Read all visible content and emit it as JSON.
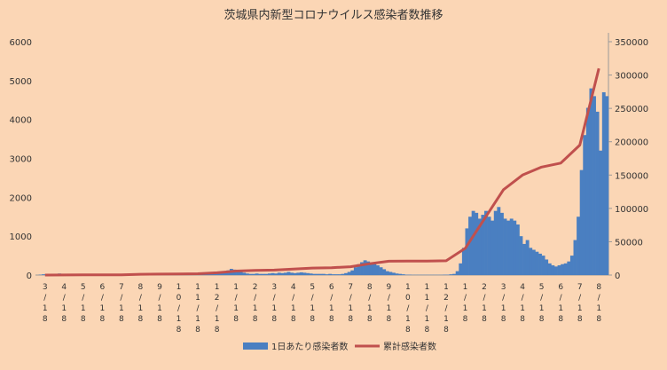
{
  "chart_data": {
    "type": "bar+line",
    "title": "茨城県内新型コロナウイルス感染者数推移",
    "y_left": {
      "ticks": [
        "0",
        "1000",
        "2000",
        "3000",
        "4000",
        "5000",
        "6000"
      ],
      "min": 0,
      "max": 6000
    },
    "y_right": {
      "ticks": [
        "0",
        "50000",
        "100000",
        "150000",
        "200000",
        "250000",
        "300000",
        "350000"
      ],
      "min": 0,
      "max": 350000
    },
    "x_tick_labels": [
      [
        "3",
        "/",
        "1",
        "8"
      ],
      [
        "4",
        "/",
        "1",
        "8"
      ],
      [
        "5",
        "/",
        "1",
        "8"
      ],
      [
        "6",
        "/",
        "1",
        "8"
      ],
      [
        "7",
        "/",
        "1",
        "8"
      ],
      [
        "8",
        "/",
        "1",
        "8"
      ],
      [
        "9",
        "/",
        "1",
        "8"
      ],
      [
        "1",
        "0",
        "/",
        "1",
        "8"
      ],
      [
        "1",
        "1",
        "/",
        "1",
        "8"
      ],
      [
        "1",
        "2",
        "/",
        "1",
        "8"
      ],
      [
        "1",
        "/",
        "1",
        "8"
      ],
      [
        "2",
        "/",
        "1",
        "8"
      ],
      [
        "3",
        "/",
        "1",
        "8"
      ],
      [
        "4",
        "/",
        "1",
        "8"
      ],
      [
        "5",
        "/",
        "1",
        "8"
      ],
      [
        "6",
        "/",
        "1",
        "8"
      ],
      [
        "7",
        "/",
        "1",
        "8"
      ],
      [
        "8",
        "/",
        "1",
        "8"
      ],
      [
        "9",
        "/",
        "1",
        "8"
      ],
      [
        "1",
        "0",
        "/",
        "1",
        "8"
      ],
      [
        "1",
        "1",
        "/",
        "1",
        "8"
      ],
      [
        "1",
        "2",
        "/",
        "1",
        "8"
      ],
      [
        "1",
        "/",
        "1",
        "8"
      ],
      [
        "2",
        "/",
        "1",
        "8"
      ],
      [
        "3",
        "/",
        "1",
        "8"
      ],
      [
        "4",
        "/",
        "1",
        "8"
      ],
      [
        "5",
        "/",
        "1",
        "8"
      ],
      [
        "6",
        "/",
        "1",
        "8"
      ],
      [
        "7",
        "/",
        "1",
        "8"
      ],
      [
        "8",
        "/",
        "1",
        "8"
      ]
    ],
    "bar_series": {
      "name": "1日あたり感染者数",
      "color": "#4a7fc1",
      "months": [
        "2020-03",
        "2020-04",
        "2020-05",
        "2020-06",
        "2020-07",
        "2020-08",
        "2020-09",
        "2020-10",
        "2020-11",
        "2020-12",
        "2021-01",
        "2021-02",
        "2021-03",
        "2021-04",
        "2021-05",
        "2021-06",
        "2021-07",
        "2021-08",
        "2021-09",
        "2021-10",
        "2021-11",
        "2021-12",
        "2022-01",
        "2022-02",
        "2022-03",
        "2022-04",
        "2022-05",
        "2022-06",
        "2022-07",
        "2022-08"
      ],
      "daily_approx_by_month": [
        [
          0,
          10,
          20,
          30,
          20,
          10
        ],
        [
          10,
          40,
          20,
          10,
          5,
          0
        ],
        [
          0,
          0,
          0,
          0,
          0,
          0
        ],
        [
          0,
          0,
          0,
          0,
          0,
          0
        ],
        [
          0,
          5,
          10,
          20,
          30,
          20
        ],
        [
          20,
          40,
          30,
          20,
          10,
          10
        ],
        [
          10,
          5,
          5,
          5,
          5,
          5
        ],
        [
          5,
          5,
          5,
          10,
          10,
          10
        ],
        [
          10,
          20,
          30,
          40,
          50,
          60
        ],
        [
          60,
          80,
          60,
          90,
          70,
          60
        ],
        [
          120,
          160,
          140,
          100,
          80,
          60
        ],
        [
          40,
          30,
          30,
          40,
          30,
          30
        ],
        [
          30,
          40,
          50,
          40,
          60,
          50
        ],
        [
          60,
          80,
          60,
          50,
          60,
          70
        ],
        [
          60,
          50,
          40,
          30,
          30,
          30
        ],
        [
          30,
          20,
          30,
          20,
          20,
          20
        ],
        [
          30,
          50,
          80,
          120,
          200,
          280
        ],
        [
          330,
          380,
          350,
          320,
          290,
          250
        ],
        [
          200,
          150,
          100,
          80,
          60,
          40
        ],
        [
          30,
          20,
          10,
          10,
          5,
          5
        ],
        [
          5,
          5,
          5,
          5,
          5,
          5
        ],
        [
          5,
          5,
          10,
          10,
          20,
          30
        ],
        [
          100,
          300,
          700,
          1200,
          1500,
          1650
        ],
        [
          1600,
          1450,
          1550,
          1650,
          1500,
          1400
        ],
        [
          1650,
          1750,
          1600,
          1450,
          1400,
          1450
        ],
        [
          1400,
          1300,
          1000,
          800,
          900,
          700
        ],
        [
          650,
          600,
          550,
          500,
          400,
          300
        ],
        [
          250,
          220,
          250,
          280,
          300,
          350
        ],
        [
          500,
          900,
          1500,
          2700,
          3600,
          4300
        ],
        [
          4800,
          4600,
          4200,
          3200,
          4700,
          4600
        ]
      ]
    },
    "line_series": {
      "name": "累計感染者数",
      "color": "#c0504d",
      "monthly_cumulative": [
        0,
        180,
        200,
        200,
        300,
        1200,
        1500,
        1600,
        2000,
        3500,
        6000,
        7000,
        7500,
        9000,
        10500,
        11000,
        12500,
        17000,
        20800,
        21000,
        21000,
        21400,
        40000,
        84000,
        128000,
        150000,
        162000,
        168000,
        195000,
        310000
      ]
    }
  }
}
